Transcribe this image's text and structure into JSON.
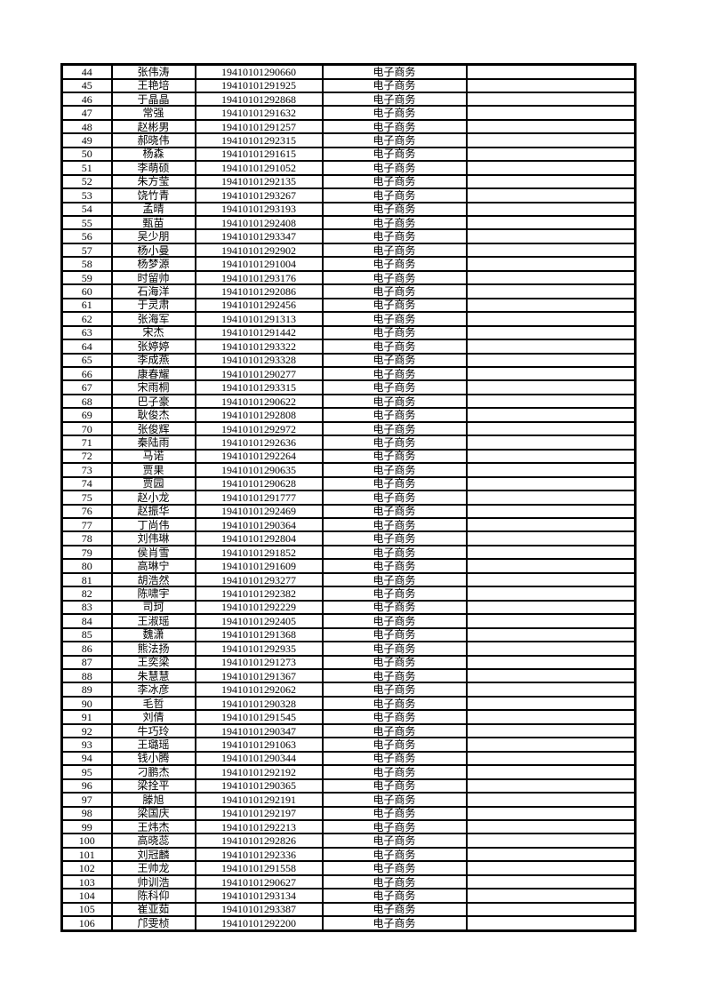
{
  "document": {
    "type": "printed-student-roster-table",
    "major_label": "电子商务",
    "text_color": "#000000",
    "border_color": "#000000",
    "background_color": "#ffffff"
  },
  "table": {
    "rows": [
      {
        "index": "44",
        "name": "张伟涛",
        "id": "19410101290660",
        "major": "电子商务",
        "blank": ""
      },
      {
        "index": "45",
        "name": "王艳培",
        "id": "19410101291925",
        "major": "电子商务",
        "blank": ""
      },
      {
        "index": "46",
        "name": "于晶晶",
        "id": "19410101292868",
        "major": "电子商务",
        "blank": ""
      },
      {
        "index": "47",
        "name": "常强",
        "id": "19410101291632",
        "major": "电子商务",
        "blank": ""
      },
      {
        "index": "48",
        "name": "赵彬男",
        "id": "19410101291257",
        "major": "电子商务",
        "blank": ""
      },
      {
        "index": "49",
        "name": "郝晓伟",
        "id": "19410101292315",
        "major": "电子商务",
        "blank": ""
      },
      {
        "index": "50",
        "name": "杨森",
        "id": "19410101291615",
        "major": "电子商务",
        "blank": ""
      },
      {
        "index": "51",
        "name": "李萌硕",
        "id": "19410101291052",
        "major": "电子商务",
        "blank": ""
      },
      {
        "index": "52",
        "name": "朱方莹",
        "id": "19410101292135",
        "major": "电子商务",
        "blank": ""
      },
      {
        "index": "53",
        "name": "饶竹青",
        "id": "19410101293267",
        "major": "电子商务",
        "blank": ""
      },
      {
        "index": "54",
        "name": "孟晴",
        "id": "19410101293193",
        "major": "电子商务",
        "blank": ""
      },
      {
        "index": "55",
        "name": "甄苗",
        "id": "19410101292408",
        "major": "电子商务",
        "blank": ""
      },
      {
        "index": "56",
        "name": "吴少朋",
        "id": "19410101293347",
        "major": "电子商务",
        "blank": ""
      },
      {
        "index": "57",
        "name": "杨小曼",
        "id": "19410101292902",
        "major": "电子商务",
        "blank": ""
      },
      {
        "index": "58",
        "name": "杨梦源",
        "id": "19410101291004",
        "major": "电子商务",
        "blank": ""
      },
      {
        "index": "59",
        "name": "时留帅",
        "id": "19410101293176",
        "major": "电子商务",
        "blank": ""
      },
      {
        "index": "60",
        "name": "石海洋",
        "id": "19410101292086",
        "major": "电子商务",
        "blank": ""
      },
      {
        "index": "61",
        "name": "于灵肃",
        "id": "19410101292456",
        "major": "电子商务",
        "blank": ""
      },
      {
        "index": "62",
        "name": "张海军",
        "id": "19410101291313",
        "major": "电子商务",
        "blank": ""
      },
      {
        "index": "63",
        "name": "宋杰",
        "id": "19410101291442",
        "major": "电子商务",
        "blank": ""
      },
      {
        "index": "64",
        "name": "张婷婷",
        "id": "19410101293322",
        "major": "电子商务",
        "blank": ""
      },
      {
        "index": "65",
        "name": "李成燕",
        "id": "19410101293328",
        "major": "电子商务",
        "blank": ""
      },
      {
        "index": "66",
        "name": "康春耀",
        "id": "19410101290277",
        "major": "电子商务",
        "blank": ""
      },
      {
        "index": "67",
        "name": "宋雨桐",
        "id": "19410101293315",
        "major": "电子商务",
        "blank": ""
      },
      {
        "index": "68",
        "name": "巴子豪",
        "id": "19410101290622",
        "major": "电子商务",
        "blank": ""
      },
      {
        "index": "69",
        "name": "耿俊杰",
        "id": "19410101292808",
        "major": "电子商务",
        "blank": ""
      },
      {
        "index": "70",
        "name": "张俊辉",
        "id": "19410101292972",
        "major": "电子商务",
        "blank": ""
      },
      {
        "index": "71",
        "name": "秦陆雨",
        "id": "19410101292636",
        "major": "电子商务",
        "blank": ""
      },
      {
        "index": "72",
        "name": "马诺",
        "id": "19410101292264",
        "major": "电子商务",
        "blank": ""
      },
      {
        "index": "73",
        "name": "贾果",
        "id": "19410101290635",
        "major": "电子商务",
        "blank": ""
      },
      {
        "index": "74",
        "name": "贾园",
        "id": "19410101290628",
        "major": "电子商务",
        "blank": ""
      },
      {
        "index": "75",
        "name": "赵小龙",
        "id": "19410101291777",
        "major": "电子商务",
        "blank": ""
      },
      {
        "index": "76",
        "name": "赵振华",
        "id": "19410101292469",
        "major": "电子商务",
        "blank": ""
      },
      {
        "index": "77",
        "name": "丁尚伟",
        "id": "19410101290364",
        "major": "电子商务",
        "blank": ""
      },
      {
        "index": "78",
        "name": "刘伟琳",
        "id": "19410101292804",
        "major": "电子商务",
        "blank": ""
      },
      {
        "index": "79",
        "name": "侯肖雪",
        "id": "19410101291852",
        "major": "电子商务",
        "blank": ""
      },
      {
        "index": "80",
        "name": "高琳宁",
        "id": "19410101291609",
        "major": "电子商务",
        "blank": ""
      },
      {
        "index": "81",
        "name": "胡浩然",
        "id": "19410101293277",
        "major": "电子商务",
        "blank": ""
      },
      {
        "index": "82",
        "name": "陈啸宇",
        "id": "19410101292382",
        "major": "电子商务",
        "blank": ""
      },
      {
        "index": "83",
        "name": "司珂",
        "id": "19410101292229",
        "major": "电子商务",
        "blank": ""
      },
      {
        "index": "84",
        "name": "王淑瑶",
        "id": "19410101292405",
        "major": "电子商务",
        "blank": ""
      },
      {
        "index": "85",
        "name": "魏潇",
        "id": "19410101291368",
        "major": "电子商务",
        "blank": ""
      },
      {
        "index": "86",
        "name": "熊法扬",
        "id": "19410101292935",
        "major": "电子商务",
        "blank": ""
      },
      {
        "index": "87",
        "name": "王奕梁",
        "id": "19410101291273",
        "major": "电子商务",
        "blank": ""
      },
      {
        "index": "88",
        "name": "朱慧慧",
        "id": "19410101291367",
        "major": "电子商务",
        "blank": ""
      },
      {
        "index": "89",
        "name": "李冰彦",
        "id": "19410101292062",
        "major": "电子商务",
        "blank": ""
      },
      {
        "index": "90",
        "name": "毛哲",
        "id": "19410101290328",
        "major": "电子商务",
        "blank": ""
      },
      {
        "index": "91",
        "name": "刘倩",
        "id": "19410101291545",
        "major": "电子商务",
        "blank": ""
      },
      {
        "index": "92",
        "name": "牛巧玲",
        "id": "19410101290347",
        "major": "电子商务",
        "blank": ""
      },
      {
        "index": "93",
        "name": "王璐瑶",
        "id": "19410101291063",
        "major": "电子商务",
        "blank": ""
      },
      {
        "index": "94",
        "name": "钱小腾",
        "id": "19410101290344",
        "major": "电子商务",
        "blank": ""
      },
      {
        "index": "95",
        "name": "刁鹏杰",
        "id": "19410101292192",
        "major": "电子商务",
        "blank": ""
      },
      {
        "index": "96",
        "name": "梁拴平",
        "id": "19410101290365",
        "major": "电子商务",
        "blank": ""
      },
      {
        "index": "97",
        "name": "滕旭",
        "id": "19410101292191",
        "major": "电子商务",
        "blank": ""
      },
      {
        "index": "98",
        "name": "梁国庆",
        "id": "19410101292197",
        "major": "电子商务",
        "blank": ""
      },
      {
        "index": "99",
        "name": "王炜杰",
        "id": "19410101292213",
        "major": "电子商务",
        "blank": ""
      },
      {
        "index": "100",
        "name": "高晓蕊",
        "id": "19410101292826",
        "major": "电子商务",
        "blank": ""
      },
      {
        "index": "101",
        "name": "刘冠麟",
        "id": "19410101292336",
        "major": "电子商务",
        "blank": ""
      },
      {
        "index": "102",
        "name": "王帅龙",
        "id": "19410101291558",
        "major": "电子商务",
        "blank": ""
      },
      {
        "index": "103",
        "name": "帅训浩",
        "id": "19410101290627",
        "major": "电子商务",
        "blank": ""
      },
      {
        "index": "104",
        "name": "陈科仰",
        "id": "19410101293134",
        "major": "电子商务",
        "blank": ""
      },
      {
        "index": "105",
        "name": "崔亚茹",
        "id": "19410101293387",
        "major": "电子商务",
        "blank": ""
      },
      {
        "index": "106",
        "name": "邝雯桢",
        "id": "19410101292200",
        "major": "电子商务",
        "blank": ""
      }
    ]
  }
}
